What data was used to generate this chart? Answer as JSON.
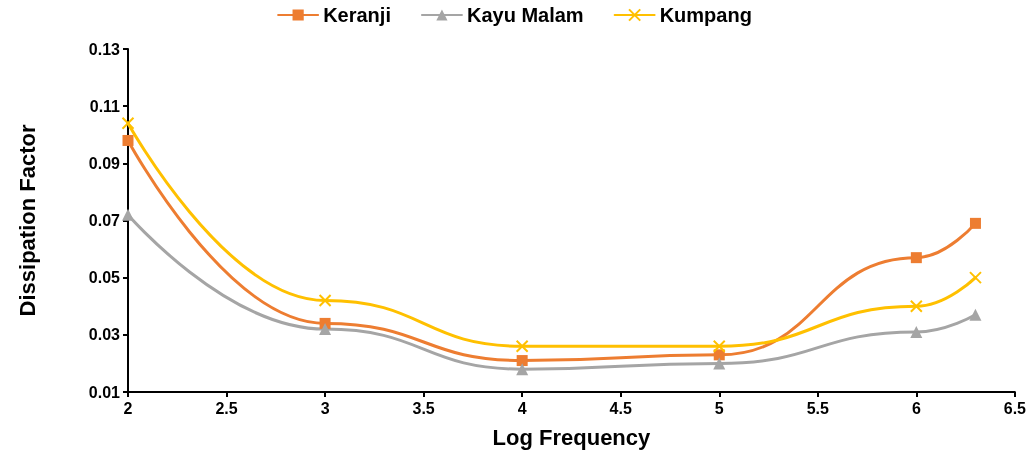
{
  "chart_data": {
    "type": "line",
    "xlabel": "Log Frequency",
    "ylabel": "Dissipation Factor",
    "x": [
      2,
      3,
      4,
      5,
      6,
      6.3
    ],
    "series": [
      {
        "name": "Keranji",
        "color": "#ed7d31",
        "marker": "square",
        "values": [
          0.098,
          0.034,
          0.021,
          0.023,
          0.057,
          0.069
        ]
      },
      {
        "name": "Kayu Malam",
        "color": "#a5a5a5",
        "marker": "triangle",
        "values": [
          0.072,
          0.032,
          0.018,
          0.02,
          0.031,
          0.037
        ]
      },
      {
        "name": "Kumpang",
        "color": "#ffc000",
        "marker": "cross",
        "values": [
          0.104,
          0.042,
          0.026,
          0.026,
          0.04,
          0.05
        ]
      }
    ],
    "xlim": [
      2,
      6.5
    ],
    "xticks": [
      2,
      2.5,
      3,
      3.5,
      4,
      4.5,
      5,
      5.5,
      6,
      6.5
    ],
    "ylim": [
      0.01,
      0.13
    ],
    "yticks": [
      0.01,
      0.03,
      0.05,
      0.07,
      0.09,
      0.11,
      0.13
    ],
    "grid": false,
    "legend": "top",
    "line_style": "solid"
  }
}
